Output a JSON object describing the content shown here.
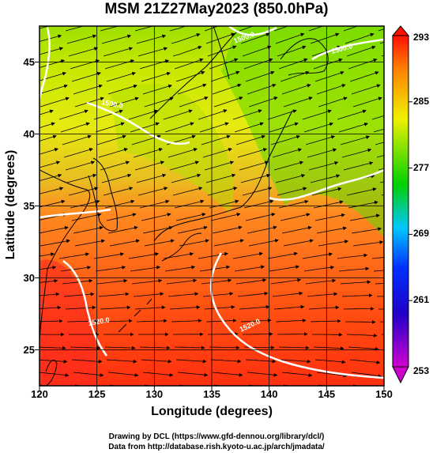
{
  "title": "MSM 21Z27May2023 (850.0hPa)",
  "x_axis": {
    "label": "Longitude (degrees)",
    "range": [
      120,
      150
    ],
    "ticks": [
      120,
      125,
      130,
      135,
      140,
      145,
      150
    ]
  },
  "y_axis": {
    "label": "Latitude  (degrees)",
    "range": [
      22.5,
      47.5
    ],
    "ticks": [
      25,
      30,
      35,
      40,
      45
    ]
  },
  "colorbar": {
    "range": [
      253,
      293
    ],
    "ticks": [
      253,
      261,
      269,
      277,
      285,
      293
    ],
    "colors": [
      "#d000d0",
      "#0010d0",
      "#00c8ff",
      "#00d000",
      "#f0f000",
      "#ff0000"
    ]
  },
  "contour_labels": [
    "1500.0",
    "1500.0",
    "1500.0",
    "1520.0",
    "1520.0"
  ],
  "footer": {
    "line1": "Drawing by DCL (https://www.gfd-dennou.org/library/dcl/)",
    "line2": "Data from http://database.rish.kyoto-u.ac.jp/arch/jmadata/"
  }
}
